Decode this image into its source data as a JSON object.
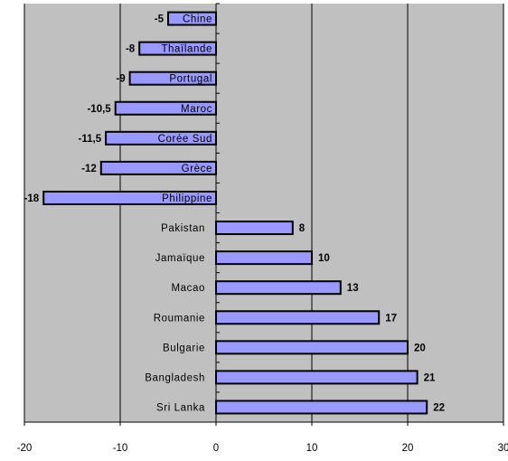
{
  "chart_data": {
    "type": "bar",
    "orientation": "horizontal",
    "title": "",
    "xlabel": "",
    "ylabel": "",
    "categories": [
      "Chine",
      "Thaïlande",
      "Portugal",
      "Maroc",
      "Corée Sud",
      "Grèce",
      "Philippine",
      "Pakistan",
      "Jamaïque",
      "Macao",
      "Roumanie",
      "Bulgarie",
      "Bangladesh",
      "Sri Lanka"
    ],
    "values": [
      -5,
      -8,
      -9,
      -10.5,
      -11.5,
      -12,
      -18,
      8,
      10,
      13,
      17,
      20,
      21,
      22
    ],
    "value_labels": [
      "-5",
      "-8",
      "-9",
      "-10,5",
      "-11,5",
      "-12",
      "-18",
      "8",
      "10",
      "13",
      "17",
      "20",
      "21",
      "22"
    ],
    "xlim": [
      -20,
      30
    ],
    "x_ticks": [
      -20,
      -10,
      0,
      10,
      20,
      30
    ],
    "x_tick_labels": [
      "-20",
      "-10",
      "0",
      "10",
      "20",
      "30"
    ],
    "grid": "vertical",
    "legend": "none",
    "colors": {
      "bar_fill": "#9999ff",
      "bar_stroke": "#000000",
      "plot_background": "#c0c0c0",
      "gridline": "#000000"
    }
  }
}
